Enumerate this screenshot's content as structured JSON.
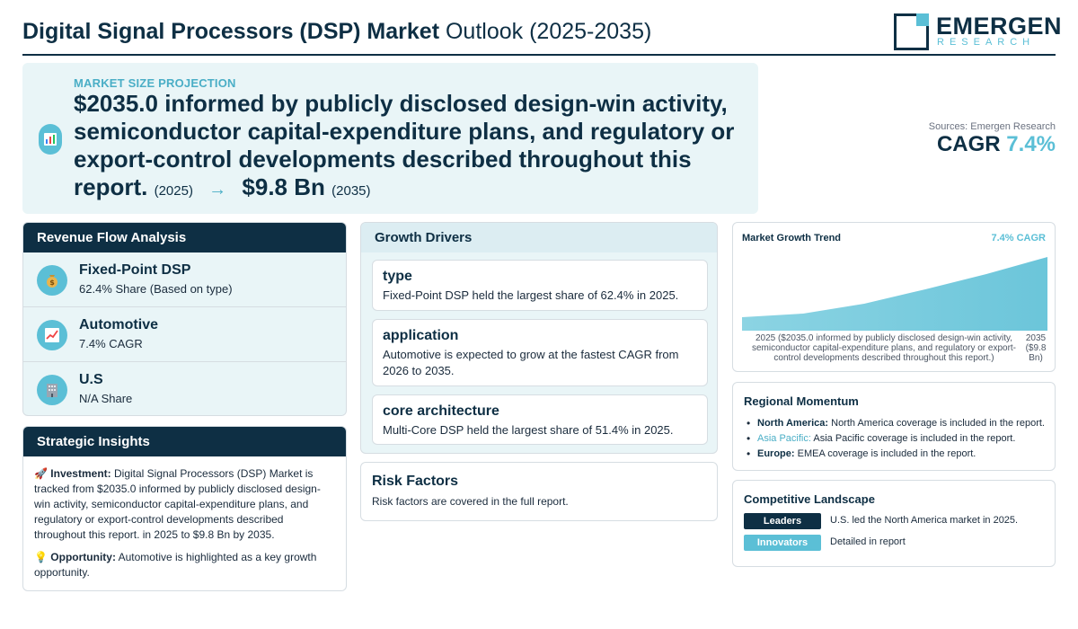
{
  "header": {
    "title_bold": "Digital Signal Processors (DSP) Market",
    "title_light": "Outlook (2025-2035)",
    "logo_main": "EMERGEN",
    "logo_sub": "RESEARCH"
  },
  "hero": {
    "label": "MARKET SIZE PROJECTION",
    "start_value": "$2035.0 informed by publicly disclosed design-win activity, semiconductor capital-expenditure plans, and regulatory or export-control developments described throughout this report.",
    "start_year": "(2025)",
    "arrow": "→",
    "end_value": "$9.8 Bn",
    "end_year": "(2035)",
    "icon": "bar-chart-icon"
  },
  "summary": {
    "sources": "Sources: Emergen Research",
    "cagr_label": "CAGR",
    "cagr_value": "7.4%"
  },
  "revenue_flow": {
    "title": "Revenue Flow Analysis",
    "items": [
      {
        "name": "Fixed-Point DSP",
        "sub": "62.4% Share (Based on type)",
        "icon": "money-bag-icon"
      },
      {
        "name": "Automotive",
        "sub": "7.4% CAGR",
        "icon": "trending-chart-icon"
      },
      {
        "name": "U.S",
        "sub": "N/A Share",
        "icon": "building-icon"
      }
    ]
  },
  "strategic": {
    "title": "Strategic Insights",
    "investment_label": "Investment:",
    "investment_text": "Digital Signal Processors (DSP) Market is tracked from $2035.0 informed by publicly disclosed design-win activity, semiconductor capital-expenditure plans, and regulatory or export-control developments described throughout this report. in 2025 to $9.8 Bn by 2035.",
    "opportunity_label": "Opportunity:",
    "opportunity_text": "Automotive is highlighted as a key growth opportunity."
  },
  "drivers": {
    "title": "Growth Drivers",
    "items": [
      {
        "name": "type",
        "desc": "Fixed-Point DSP held the largest share of 62.4% in 2025."
      },
      {
        "name": "application",
        "desc": "Automotive is expected to grow at the fastest CAGR from 2026 to 2035."
      },
      {
        "name": "core architecture",
        "desc": "Multi-Core DSP held the largest share of 51.4% in 2025."
      }
    ]
  },
  "risk": {
    "title": "Risk Factors",
    "desc": "Risk factors are covered in the full report."
  },
  "trend": {
    "title": "Market Growth Trend",
    "cagr_label": "7.4% CAGR",
    "x_start_label": "2025 ($2035.0 informed by publicly disclosed design-win activity, semiconductor capital-expenditure plans, and regulatory or export-control developments described throughout this report.)",
    "x_end_label": "2035 ($9.8 Bn)",
    "accent": "#5bbfd6"
  },
  "regional": {
    "title": "Regional Momentum",
    "items": [
      {
        "region": "North America:",
        "text": "North America coverage is included in the report."
      },
      {
        "region": "Asia Pacific:",
        "text": "Asia Pacific coverage is included in the report."
      },
      {
        "region": "Europe:",
        "text": "EMEA coverage is included in the report."
      }
    ]
  },
  "competitive": {
    "title": "Competitive Landscape",
    "leaders_label": "Leaders",
    "leaders_text": "U.S. led the North America market in 2025.",
    "innovators_label": "Innovators",
    "innovators_text": "Detailed in report"
  },
  "colors": {
    "navy": "#0e2f44",
    "accent": "#5bbfd6",
    "panel_bg": "#e9f5f7"
  }
}
